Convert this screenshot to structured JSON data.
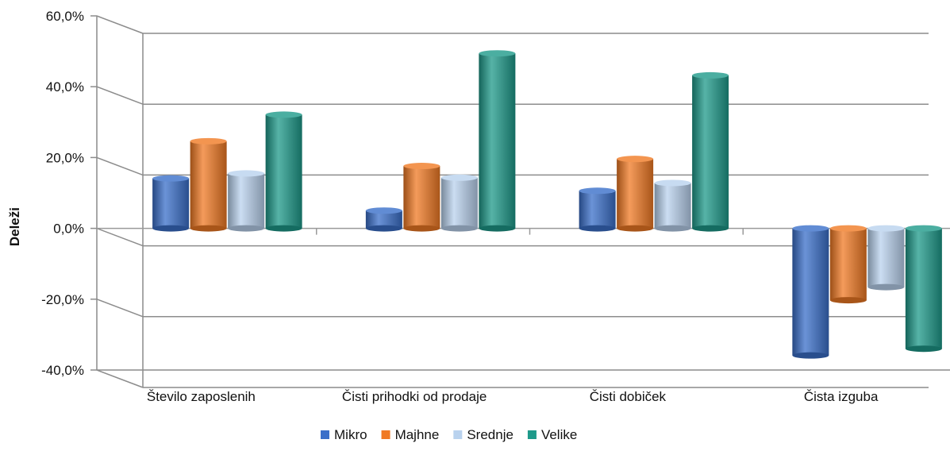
{
  "chart_data": {
    "type": "bar",
    "title": "",
    "xlabel": "",
    "ylabel": "Deleži",
    "ylim": [
      -40,
      60
    ],
    "y_ticks": [
      "60,0%",
      "40,0%",
      "20,0%",
      "0,0%",
      "-20,0%",
      "-40,0%"
    ],
    "y_tick_values": [
      60,
      40,
      20,
      0,
      -20,
      -40
    ],
    "categories": [
      "Število zaposlenih",
      "Čisti prihodki od prodaje",
      "Čisti dobiček",
      "Čista izguba"
    ],
    "series": [
      {
        "name": "Mikro",
        "color": "#3a6fc9",
        "values": [
          16.8,
          7.7,
          13.3,
          -33.2
        ]
      },
      {
        "name": "Majhne",
        "color": "#f07a24",
        "values": [
          27.3,
          20.3,
          22.3,
          -17.6
        ]
      },
      {
        "name": "Srednje",
        "color": "#b9d2ee",
        "values": [
          18.2,
          17.0,
          15.5,
          -13.9
        ]
      },
      {
        "name": "Velike",
        "color": "#1e9a8a",
        "values": [
          34.8,
          52.1,
          45.9,
          -31.3
        ]
      }
    ],
    "grid": true,
    "style": "3d-cylinder",
    "legend_position": "bottom"
  }
}
